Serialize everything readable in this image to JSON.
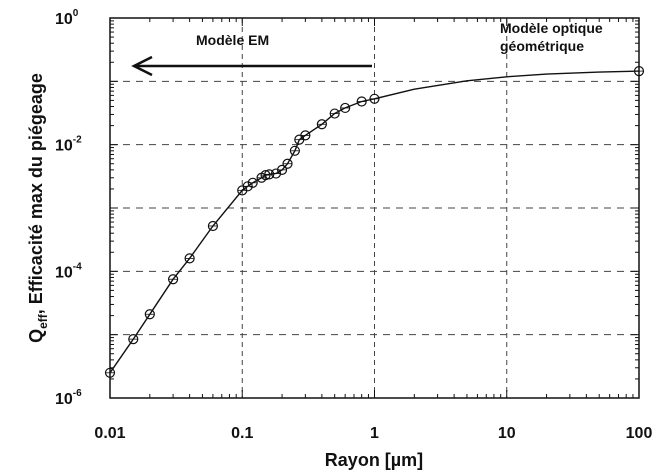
{
  "chart_data": {
    "type": "line",
    "xscale": "log",
    "yscale": "log",
    "xlim": [
      0.01,
      100
    ],
    "ylim": [
      1e-06,
      1
    ],
    "xlabel": "Rayon [µm]",
    "ylabel": {
      "prefix": "Q",
      "subscript": "eff",
      "rest": ", Efficacité max du piégeage"
    },
    "x_ticks": [
      "0.01",
      "0.1",
      "1",
      "10",
      "100"
    ],
    "y_ticks": [
      {
        "base": "10",
        "exp": "0",
        "value": 1
      },
      {
        "base": "10",
        "exp": "-2",
        "value": 0.01
      },
      {
        "base": "10",
        "exp": "-4",
        "value": 0.0001
      },
      {
        "base": "10",
        "exp": "-6",
        "value": 1e-06
      }
    ],
    "grid": true,
    "annotations": {
      "em_model": "Modèle EM",
      "optic_model_line1": "Modèle optique",
      "optic_model_line2": "géométrique"
    },
    "series": [
      {
        "marker": "circle",
        "points": [
          [
            0.01,
            2.5e-06
          ],
          [
            0.015,
            8.5e-06
          ],
          [
            0.02,
            2.1e-05
          ],
          [
            0.03,
            7.5e-05
          ],
          [
            0.04,
            0.00016
          ],
          [
            0.06,
            0.00052
          ],
          [
            0.1,
            0.0019
          ],
          [
            0.11,
            0.0022
          ],
          [
            0.12,
            0.0025
          ],
          [
            0.14,
            0.003
          ],
          [
            0.15,
            0.0033
          ],
          [
            0.16,
            0.0034
          ],
          [
            0.18,
            0.0035
          ],
          [
            0.2,
            0.004
          ],
          [
            0.22,
            0.005
          ],
          [
            0.25,
            0.008
          ],
          [
            0.27,
            0.012
          ],
          [
            0.3,
            0.014
          ],
          [
            0.4,
            0.021
          ],
          [
            0.5,
            0.031
          ],
          [
            0.6,
            0.038
          ],
          [
            0.8,
            0.048
          ],
          [
            1.0,
            0.053
          ],
          [
            100,
            0.145
          ]
        ],
        "curve_extra": [
          [
            2,
            0.075
          ],
          [
            5,
            0.102
          ],
          [
            10,
            0.118
          ],
          [
            20,
            0.13
          ],
          [
            50,
            0.14
          ]
        ]
      }
    ]
  }
}
